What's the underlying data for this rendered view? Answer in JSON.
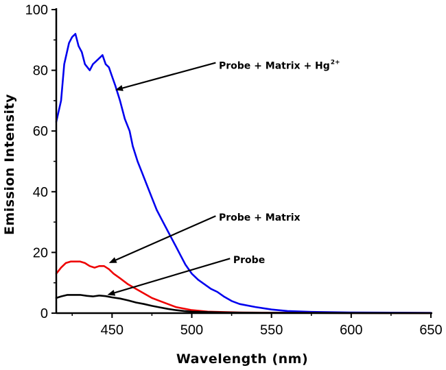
{
  "chart_data": {
    "type": "line",
    "title": "",
    "xlabel": "Wavelength (nm)",
    "ylabel": "Emission Intensity",
    "xlim": [
      415,
      650
    ],
    "ylim": [
      0,
      100
    ],
    "x_ticks": [
      450,
      500,
      550,
      600,
      650
    ],
    "x_tick_labels": [
      "450",
      "500",
      "550",
      "600",
      "650"
    ],
    "y_ticks": [
      0,
      20,
      40,
      60,
      80,
      100
    ],
    "y_tick_labels": [
      "0",
      "20",
      "40",
      "60",
      "80",
      "100"
    ],
    "grid": false,
    "series": [
      {
        "name": "Probe + Matrix + Hg2+",
        "color": "#0000ee",
        "points": [
          [
            415,
            63
          ],
          [
            418,
            70
          ],
          [
            420,
            82
          ],
          [
            423,
            89
          ],
          [
            425,
            91
          ],
          [
            427,
            92
          ],
          [
            429,
            88
          ],
          [
            431,
            86
          ],
          [
            433,
            82
          ],
          [
            436,
            80
          ],
          [
            438,
            82
          ],
          [
            440,
            83
          ],
          [
            442,
            84
          ],
          [
            444,
            85
          ],
          [
            446,
            82
          ],
          [
            448,
            81
          ],
          [
            450,
            78
          ],
          [
            452,
            75
          ],
          [
            455,
            70
          ],
          [
            458,
            64
          ],
          [
            461,
            60
          ],
          [
            463,
            55
          ],
          [
            466,
            50
          ],
          [
            469,
            46
          ],
          [
            472,
            42
          ],
          [
            475,
            38
          ],
          [
            478,
            34
          ],
          [
            481,
            31
          ],
          [
            484,
            28
          ],
          [
            487,
            25
          ],
          [
            490,
            22
          ],
          [
            493,
            19
          ],
          [
            496,
            16
          ],
          [
            500,
            13
          ],
          [
            504,
            11
          ],
          [
            508,
            9.5
          ],
          [
            512,
            8
          ],
          [
            516,
            7
          ],
          [
            520,
            5.5
          ],
          [
            525,
            4
          ],
          [
            530,
            3
          ],
          [
            540,
            2
          ],
          [
            550,
            1.2
          ],
          [
            560,
            0.7
          ],
          [
            575,
            0.4
          ],
          [
            600,
            0.2
          ],
          [
            650,
            0.1
          ]
        ]
      },
      {
        "name": "Probe + Matrix",
        "color": "#ee0000",
        "points": [
          [
            415,
            13
          ],
          [
            418,
            15
          ],
          [
            421,
            16.5
          ],
          [
            424,
            17
          ],
          [
            427,
            17
          ],
          [
            430,
            17
          ],
          [
            433,
            16.5
          ],
          [
            436,
            15.5
          ],
          [
            439,
            15
          ],
          [
            442,
            15.5
          ],
          [
            445,
            15.5
          ],
          [
            448,
            14.5
          ],
          [
            451,
            13
          ],
          [
            455,
            11.5
          ],
          [
            460,
            9.5
          ],
          [
            465,
            8
          ],
          [
            470,
            6.5
          ],
          [
            475,
            5
          ],
          [
            480,
            4
          ],
          [
            485,
            3
          ],
          [
            490,
            2
          ],
          [
            495,
            1.5
          ],
          [
            500,
            1
          ],
          [
            510,
            0.5
          ],
          [
            530,
            0.2
          ],
          [
            560,
            0.1
          ],
          [
            650,
            0
          ]
        ]
      },
      {
        "name": "Probe",
        "color": "#000000",
        "points": [
          [
            415,
            5
          ],
          [
            418,
            5.5
          ],
          [
            422,
            6
          ],
          [
            426,
            6
          ],
          [
            430,
            6
          ],
          [
            434,
            5.7
          ],
          [
            438,
            5.5
          ],
          [
            442,
            5.8
          ],
          [
            446,
            5.6
          ],
          [
            450,
            5.2
          ],
          [
            455,
            4.8
          ],
          [
            460,
            4.2
          ],
          [
            465,
            3.5
          ],
          [
            470,
            3
          ],
          [
            475,
            2.4
          ],
          [
            480,
            1.9
          ],
          [
            485,
            1.4
          ],
          [
            490,
            1
          ],
          [
            495,
            0.7
          ],
          [
            500,
            0.5
          ],
          [
            520,
            0.2
          ],
          [
            550,
            0.1
          ],
          [
            650,
            0
          ]
        ]
      }
    ],
    "annotations": [
      {
        "text": "Probe + Matrix + Hg",
        "sup": "2+",
        "arrow_from": [
          515,
          82.5
        ],
        "arrow_to": [
          452,
          73.5
        ],
        "text_at": [
          517,
          80.5
        ]
      },
      {
        "text": "Probe + Matrix",
        "arrow_from": [
          515,
          32
        ],
        "arrow_to": [
          448,
          16.5
        ],
        "text_at": [
          517,
          30.5
        ]
      },
      {
        "text": "Probe",
        "arrow_from": [
          524,
          18
        ],
        "arrow_to": [
          447,
          6
        ],
        "text_at": [
          526,
          16.5
        ]
      }
    ]
  }
}
